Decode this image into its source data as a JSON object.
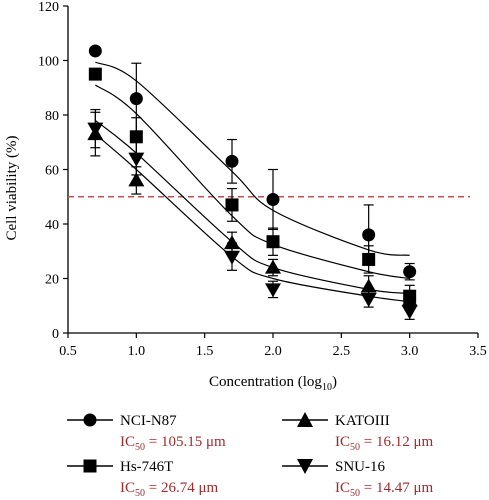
{
  "chart_data": {
    "type": "scatter",
    "title": "",
    "xlabel": "Concentration (log",
    "xlabel_sub": "10",
    "xlabel_tail": ")",
    "ylabel": "Cell viability (%)",
    "xlim": [
      0.5,
      3.5
    ],
    "ylim": [
      0,
      120
    ],
    "xticks": [
      "0.5",
      "1.0",
      "1.5",
      "2.0",
      "2.5",
      "3.0",
      "3.5"
    ],
    "yticks": [
      "0",
      "20",
      "40",
      "60",
      "80",
      "100",
      "120"
    ],
    "reference_line": {
      "y": 50,
      "style": "dashed",
      "color": "#c0504d"
    },
    "ic_prefix": "IC",
    "ic_sub": "50",
    "x": [
      0.7,
      1.0,
      1.7,
      2.0,
      2.7,
      3.0
    ],
    "series": [
      {
        "name": "NCI-N87",
        "marker": "circle",
        "values": [
          103.5,
          86,
          63,
          49,
          36,
          22.5
        ],
        "errors": [
          0,
          13,
          8,
          11,
          11,
          3
        ],
        "fit": [
          99.4,
          92.5,
          59.3,
          45,
          30.5,
          28.5
        ],
        "ic50": " = 105.15 μm"
      },
      {
        "name": "Hs-746T",
        "marker": "square",
        "values": [
          95,
          72,
          47,
          33.5,
          27,
          13.5
        ],
        "errors": [
          0,
          7,
          6,
          5,
          5,
          4
        ],
        "fit": [
          91,
          80.5,
          43,
          32.5,
          22.5,
          20
        ],
        "ic50": " = 26.74 μm"
      },
      {
        "name": "KATOIII",
        "marker": "triangle-up",
        "values": [
          73,
          56,
          33,
          24,
          17,
          12
        ],
        "errors": [
          8,
          5,
          4,
          3,
          4,
          3
        ],
        "fit": [
          78,
          66,
          33.5,
          24,
          16,
          14.5
        ],
        "ic50": " = 16.12 μm"
      },
      {
        "name": "SNU-16",
        "marker": "triangle-down",
        "values": [
          75,
          64,
          28,
          16,
          12.5,
          8
        ],
        "errors": [
          7,
          6,
          5,
          3,
          3,
          3
        ],
        "fit": [
          73,
          60,
          28,
          20,
          13.5,
          11.5
        ],
        "ic50": " = 14.47 μm"
      }
    ],
    "legend_placement": "bottom",
    "grid": false
  },
  "colors": {
    "axis": "#000000",
    "reference": "#c0504d",
    "ic_text": "#9b2c2c"
  }
}
